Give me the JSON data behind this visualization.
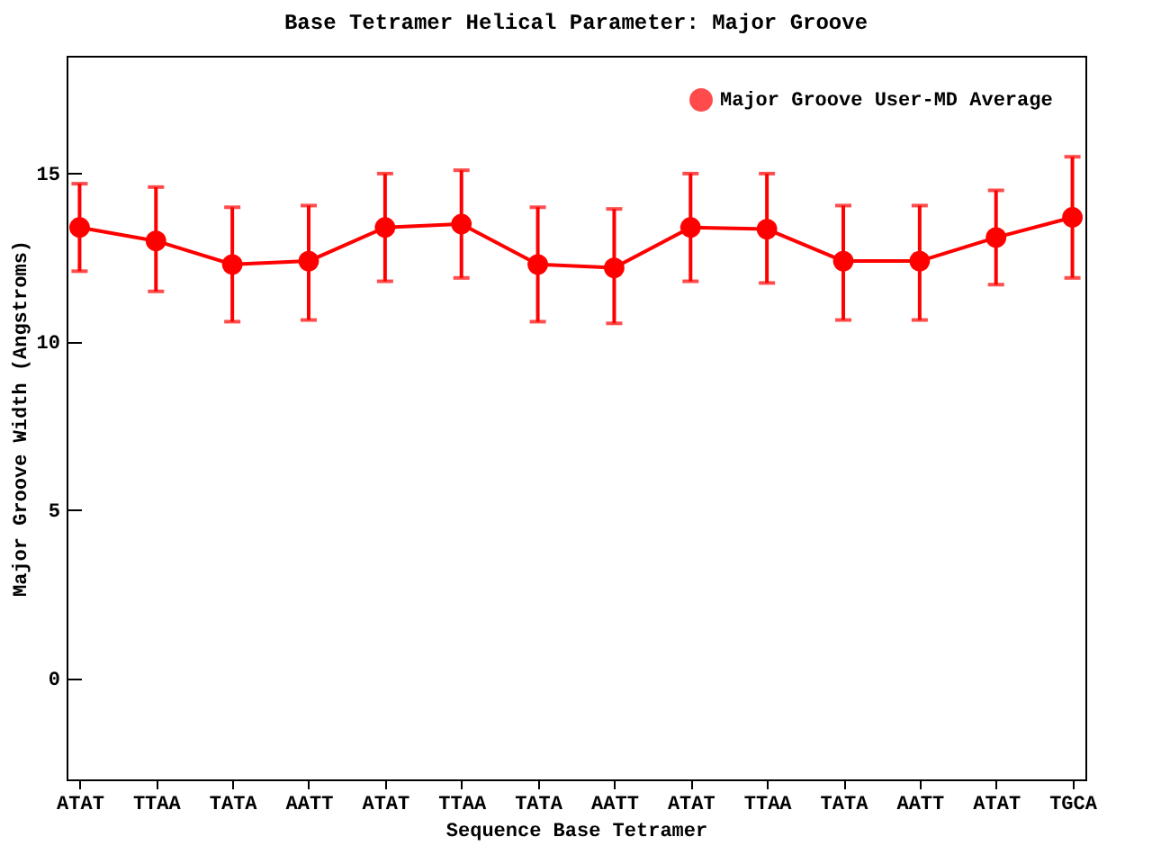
{
  "chart_data": {
    "type": "line",
    "title": "Base Tetramer Helical Parameter: Major Groove",
    "xlabel": "Sequence Base Tetramer",
    "ylabel": "Major Groove Width (Angstroms)",
    "categories": [
      "ATAT",
      "TTAA",
      "TATA",
      "AATT",
      "ATAT",
      "TTAA",
      "TATA",
      "AATT",
      "ATAT",
      "TTAA",
      "TATA",
      "AATT",
      "ATAT",
      "TGCA"
    ],
    "series": [
      {
        "name": "Major Groove User-MD Average",
        "color": "#ff0000",
        "values": [
          13.4,
          13.0,
          12.3,
          12.4,
          13.4,
          13.5,
          12.3,
          12.2,
          13.4,
          13.35,
          12.4,
          12.4,
          13.1,
          13.7
        ],
        "errors": [
          [
            12.1,
            14.7
          ],
          [
            11.5,
            14.6
          ],
          [
            10.6,
            14.0
          ],
          [
            10.65,
            14.05
          ],
          [
            11.8,
            15.0
          ],
          [
            11.9,
            15.1
          ],
          [
            10.6,
            14.0
          ],
          [
            10.55,
            13.95
          ],
          [
            11.8,
            15.0
          ],
          [
            11.75,
            15.0
          ],
          [
            10.65,
            14.05
          ],
          [
            10.65,
            14.05
          ],
          [
            11.7,
            14.5
          ],
          [
            11.9,
            15.5
          ]
        ]
      }
    ],
    "ylim": [
      -3,
      18.5
    ],
    "yticks": [
      0,
      5,
      10,
      15
    ],
    "grid": false,
    "legend": "top right",
    "marker": "circle",
    "line_style": "solid"
  }
}
